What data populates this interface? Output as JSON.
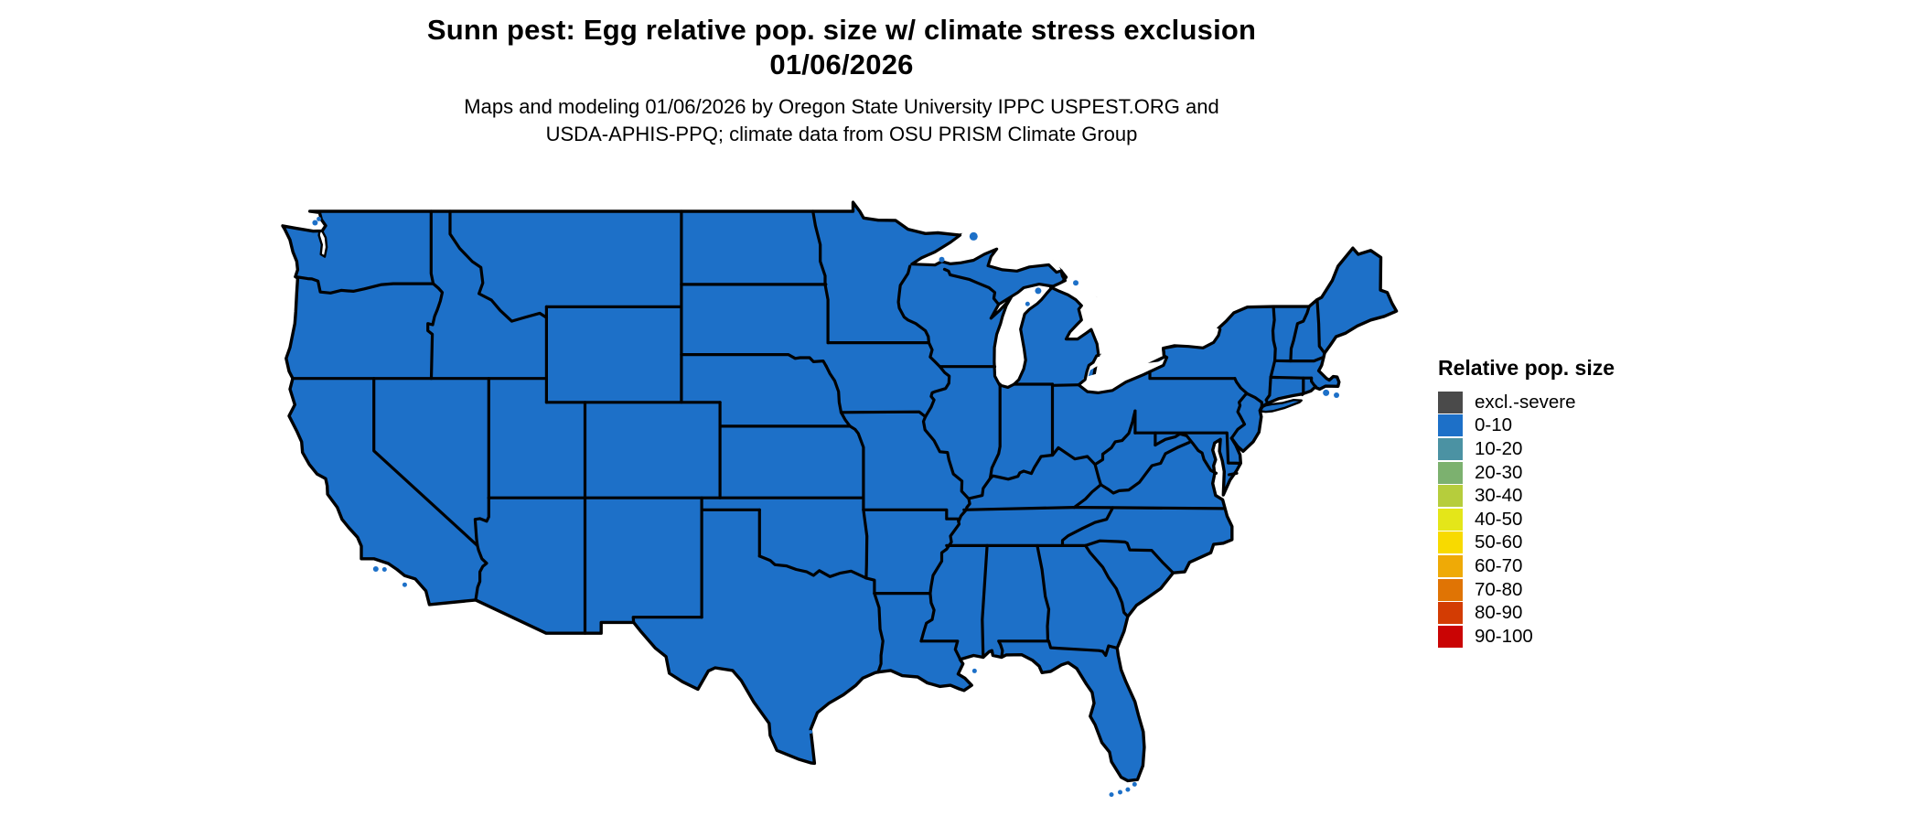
{
  "title": {
    "line1": "Sunn pest: Egg relative pop. size w/ climate stress exclusion",
    "line2": "01/06/2026"
  },
  "subtitle": {
    "line1": "Maps and modeling 01/06/2026 by Oregon State University IPPC USPEST.ORG and",
    "line2": "USDA-APHIS-PPQ; climate data from OSU PRISM Climate Group"
  },
  "legend": {
    "title": "Relative pop. size",
    "items": [
      {
        "label": "excl.-severe",
        "color": "#4a4a4a"
      },
      {
        "label": "0-10",
        "color": "#1d70c8"
      },
      {
        "label": "10-20",
        "color": "#4b92a3"
      },
      {
        "label": "20-30",
        "color": "#7cb16f"
      },
      {
        "label": "30-40",
        "color": "#b6cd3c"
      },
      {
        "label": "40-50",
        "color": "#e4e619"
      },
      {
        "label": "50-60",
        "color": "#f8da00"
      },
      {
        "label": "60-70",
        "color": "#efaa06"
      },
      {
        "label": "70-80",
        "color": "#e07404"
      },
      {
        "label": "80-90",
        "color": "#d33c03"
      },
      {
        "label": "90-100",
        "color": "#ca0404"
      }
    ]
  },
  "map": {
    "region": "Continental United States",
    "filled_category": "0-10",
    "land_fill": "#1d70c8",
    "border_color": "#000000",
    "water_color": "#ffffff"
  }
}
